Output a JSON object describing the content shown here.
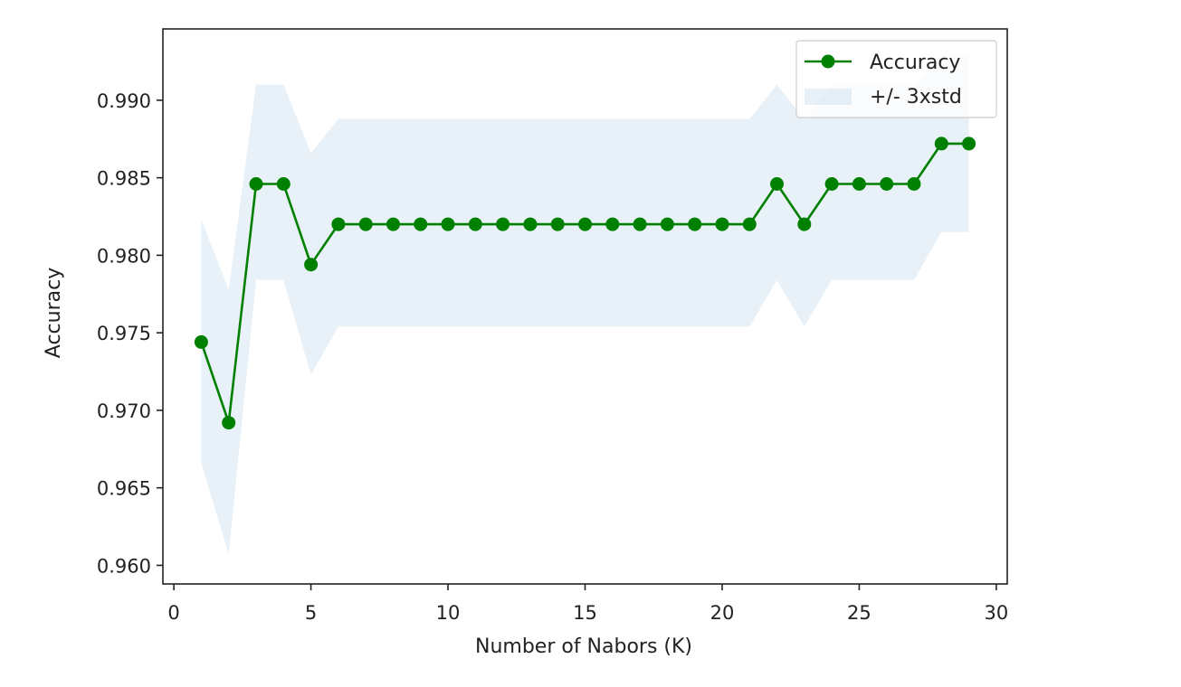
{
  "chart_data": {
    "type": "line",
    "title": "",
    "xlabel": "Number of Nabors (K)",
    "ylabel": "Accuracy",
    "xlim": [
      -0.4,
      30.4
    ],
    "ylim": [
      0.9588,
      0.9946
    ],
    "xticks": [
      0,
      5,
      10,
      15,
      20,
      25,
      30
    ],
    "xtick_labels": [
      "0",
      "5",
      "10",
      "15",
      "20",
      "25",
      "30"
    ],
    "yticks": [
      0.96,
      0.965,
      0.97,
      0.975,
      0.98,
      0.985,
      0.99
    ],
    "ytick_labels": [
      "0.960",
      "0.965",
      "0.970",
      "0.975",
      "0.980",
      "0.985",
      "0.990"
    ],
    "grid": false,
    "legend_position": "top-right",
    "x": [
      1,
      2,
      3,
      4,
      5,
      6,
      7,
      8,
      9,
      10,
      11,
      12,
      13,
      14,
      15,
      16,
      17,
      18,
      19,
      20,
      21,
      22,
      23,
      24,
      25,
      26,
      27,
      28,
      29
    ],
    "series": [
      {
        "name": "Accuracy",
        "color": "#008000",
        "marker": "circle",
        "values": [
          0.9744,
          0.9692,
          0.9846,
          0.9846,
          0.9794,
          0.982,
          0.982,
          0.982,
          0.982,
          0.982,
          0.982,
          0.982,
          0.982,
          0.982,
          0.982,
          0.982,
          0.982,
          0.982,
          0.982,
          0.982,
          0.982,
          0.9846,
          0.982,
          0.9846,
          0.9846,
          0.9846,
          0.9846,
          0.9872,
          0.9872
        ]
      }
    ],
    "band": {
      "name": "+/- 3xstd",
      "color": "#1f77b4",
      "opacity": 0.1,
      "lower": [
        0.9666,
        0.9607,
        0.9784,
        0.9784,
        0.9723,
        0.9754,
        0.9754,
        0.9754,
        0.9754,
        0.9754,
        0.9754,
        0.9754,
        0.9754,
        0.9754,
        0.9754,
        0.9754,
        0.9754,
        0.9754,
        0.9754,
        0.9754,
        0.9754,
        0.9784,
        0.9754,
        0.9784,
        0.9784,
        0.9784,
        0.9784,
        0.9815,
        0.9815
      ],
      "upper": [
        0.9823,
        0.9778,
        0.991,
        0.991,
        0.9866,
        0.9888,
        0.9888,
        0.9888,
        0.9888,
        0.9888,
        0.9888,
        0.9888,
        0.9888,
        0.9888,
        0.9888,
        0.9888,
        0.9888,
        0.9888,
        0.9888,
        0.9888,
        0.9888,
        0.991,
        0.9888,
        0.991,
        0.991,
        0.991,
        0.991,
        0.9929,
        0.9929
      ]
    }
  }
}
